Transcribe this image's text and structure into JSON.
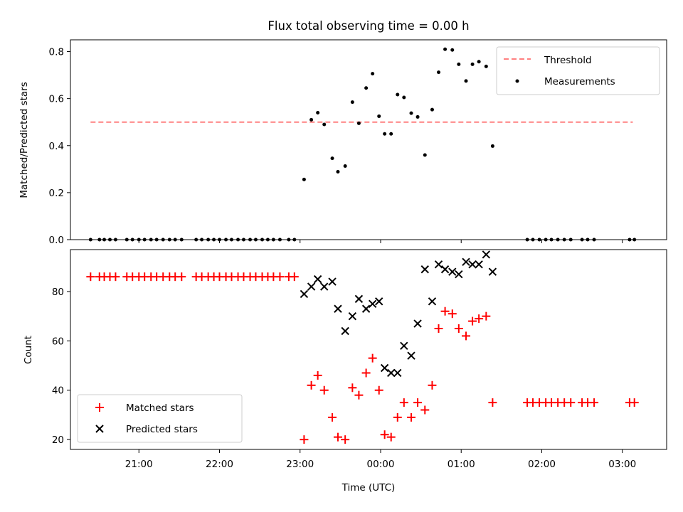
{
  "chart_data": {
    "title": "Flux total observing time = 0.00 h",
    "xlabel": "Time (UTC)",
    "x_ticks": [
      "21:00",
      "22:00",
      "23:00",
      "00:00",
      "01:00",
      "02:00",
      "03:00"
    ],
    "x_unit_note": "x values are hours after 20:00 UTC on the first night",
    "panels": [
      {
        "type": "scatter",
        "ylabel": "Matched/Predicted stars",
        "ylim": [
          0,
          0.85
        ],
        "yticks": [
          "0.0",
          "0.2",
          "0.4",
          "0.6",
          "0.8"
        ],
        "legend_position": "upper right",
        "series": [
          {
            "name": "Threshold",
            "style": "dashed-line",
            "color": "#ff8080",
            "points": [
              [
                0.4,
                0.5
              ],
              [
                7.13,
                0.5
              ]
            ]
          },
          {
            "name": "Measurements",
            "style": "dot",
            "color": "#000000",
            "points": [
              [
                0.4,
                0.0
              ],
              [
                0.51,
                0.0
              ],
              [
                0.57,
                0.0
              ],
              [
                0.64,
                0.0
              ],
              [
                0.71,
                0.0
              ],
              [
                0.85,
                0.0
              ],
              [
                0.92,
                0.0
              ],
              [
                1.0,
                0.0
              ],
              [
                1.07,
                0.0
              ],
              [
                1.15,
                0.0
              ],
              [
                1.22,
                0.0
              ],
              [
                1.3,
                0.0
              ],
              [
                1.38,
                0.0
              ],
              [
                1.45,
                0.0
              ],
              [
                1.53,
                0.0
              ],
              [
                1.71,
                0.0
              ],
              [
                1.78,
                0.0
              ],
              [
                1.86,
                0.0
              ],
              [
                1.93,
                0.0
              ],
              [
                2.0,
                0.0
              ],
              [
                2.08,
                0.0
              ],
              [
                2.15,
                0.0
              ],
              [
                2.23,
                0.0
              ],
              [
                2.3,
                0.0
              ],
              [
                2.38,
                0.0
              ],
              [
                2.45,
                0.0
              ],
              [
                2.53,
                0.0
              ],
              [
                2.6,
                0.0
              ],
              [
                2.67,
                0.0
              ],
              [
                2.75,
                0.0
              ],
              [
                2.86,
                0.0
              ],
              [
                2.93,
                0.0
              ],
              [
                3.05,
                0.256
              ],
              [
                3.14,
                0.51
              ],
              [
                3.22,
                0.54
              ],
              [
                3.3,
                0.49
              ],
              [
                3.4,
                0.346
              ],
              [
                3.47,
                0.289
              ],
              [
                3.56,
                0.313
              ],
              [
                3.65,
                0.585
              ],
              [
                3.73,
                0.495
              ],
              [
                3.82,
                0.645
              ],
              [
                3.9,
                0.706
              ],
              [
                3.98,
                0.525
              ],
              [
                4.05,
                0.45
              ],
              [
                4.13,
                0.45
              ],
              [
                4.21,
                0.617
              ],
              [
                4.29,
                0.605
              ],
              [
                4.38,
                0.538
              ],
              [
                4.46,
                0.522
              ],
              [
                4.55,
                0.36
              ],
              [
                4.64,
                0.553
              ],
              [
                4.72,
                0.712
              ],
              [
                4.8,
                0.81
              ],
              [
                4.89,
                0.807
              ],
              [
                4.97,
                0.746
              ],
              [
                5.06,
                0.675
              ],
              [
                5.14,
                0.746
              ],
              [
                5.22,
                0.757
              ],
              [
                5.31,
                0.737
              ],
              [
                5.39,
                0.398
              ],
              [
                5.82,
                0.0
              ],
              [
                5.89,
                0.0
              ],
              [
                5.97,
                0.0
              ],
              [
                6.05,
                0.0
              ],
              [
                6.12,
                0.0
              ],
              [
                6.2,
                0.0
              ],
              [
                6.28,
                0.0
              ],
              [
                6.36,
                0.0
              ],
              [
                6.5,
                0.0
              ],
              [
                6.57,
                0.0
              ],
              [
                6.65,
                0.0
              ],
              [
                7.09,
                0.0
              ],
              [
                7.15,
                0.0
              ]
            ]
          }
        ]
      },
      {
        "type": "scatter",
        "ylabel": "Count",
        "ylim": [
          16,
          97
        ],
        "yticks": [
          "20",
          "40",
          "60",
          "80"
        ],
        "legend_position": "lower left",
        "series": [
          {
            "name": "Matched stars",
            "marker": "plus",
            "color": "#ff0000",
            "points": [
              [
                0.4,
                86
              ],
              [
                0.51,
                86
              ],
              [
                0.57,
                86
              ],
              [
                0.64,
                86
              ],
              [
                0.71,
                86
              ],
              [
                0.85,
                86
              ],
              [
                0.92,
                86
              ],
              [
                1.0,
                86
              ],
              [
                1.07,
                86
              ],
              [
                1.15,
                86
              ],
              [
                1.22,
                86
              ],
              [
                1.3,
                86
              ],
              [
                1.38,
                86
              ],
              [
                1.45,
                86
              ],
              [
                1.53,
                86
              ],
              [
                1.71,
                86
              ],
              [
                1.78,
                86
              ],
              [
                1.86,
                86
              ],
              [
                1.93,
                86
              ],
              [
                2.0,
                86
              ],
              [
                2.08,
                86
              ],
              [
                2.15,
                86
              ],
              [
                2.23,
                86
              ],
              [
                2.3,
                86
              ],
              [
                2.38,
                86
              ],
              [
                2.45,
                86
              ],
              [
                2.53,
                86
              ],
              [
                2.6,
                86
              ],
              [
                2.67,
                86
              ],
              [
                2.75,
                86
              ],
              [
                2.86,
                86
              ],
              [
                2.93,
                86
              ],
              [
                3.05,
                20
              ],
              [
                3.14,
                42
              ],
              [
                3.22,
                46
              ],
              [
                3.3,
                40
              ],
              [
                3.4,
                29
              ],
              [
                3.47,
                21
              ],
              [
                3.56,
                20
              ],
              [
                3.65,
                41
              ],
              [
                3.73,
                38
              ],
              [
                3.82,
                47
              ],
              [
                3.9,
                53
              ],
              [
                3.98,
                40
              ],
              [
                4.05,
                22
              ],
              [
                4.13,
                21
              ],
              [
                4.21,
                29
              ],
              [
                4.29,
                35
              ],
              [
                4.38,
                29
              ],
              [
                4.46,
                35
              ],
              [
                4.55,
                32
              ],
              [
                4.64,
                42
              ],
              [
                4.72,
                65
              ],
              [
                4.8,
                72
              ],
              [
                4.89,
                71
              ],
              [
                4.97,
                65
              ],
              [
                5.06,
                62
              ],
              [
                5.14,
                68
              ],
              [
                5.22,
                69
              ],
              [
                5.31,
                70
              ],
              [
                5.39,
                35
              ],
              [
                5.82,
                35
              ],
              [
                5.89,
                35
              ],
              [
                5.97,
                35
              ],
              [
                6.05,
                35
              ],
              [
                6.12,
                35
              ],
              [
                6.2,
                35
              ],
              [
                6.28,
                35
              ],
              [
                6.36,
                35
              ],
              [
                6.5,
                35
              ],
              [
                6.57,
                35
              ],
              [
                6.65,
                35
              ],
              [
                7.09,
                35
              ],
              [
                7.15,
                35
              ]
            ]
          },
          {
            "name": "Predicted stars",
            "marker": "x",
            "color": "#000000",
            "points": [
              [
                3.05,
                79
              ],
              [
                3.14,
                82
              ],
              [
                3.22,
                85
              ],
              [
                3.3,
                82
              ],
              [
                3.4,
                84
              ],
              [
                3.47,
                73
              ],
              [
                3.56,
                64
              ],
              [
                3.65,
                70
              ],
              [
                3.73,
                77
              ],
              [
                3.82,
                73
              ],
              [
                3.9,
                75
              ],
              [
                3.98,
                76
              ],
              [
                4.05,
                49
              ],
              [
                4.13,
                47
              ],
              [
                4.21,
                47
              ],
              [
                4.29,
                58
              ],
              [
                4.38,
                54
              ],
              [
                4.46,
                67
              ],
              [
                4.55,
                89
              ],
              [
                4.64,
                76
              ],
              [
                4.72,
                91
              ],
              [
                4.8,
                89
              ],
              [
                4.89,
                88
              ],
              [
                4.97,
                87
              ],
              [
                5.06,
                92
              ],
              [
                5.14,
                91
              ],
              [
                5.22,
                91
              ],
              [
                5.31,
                95
              ],
              [
                5.39,
                88
              ]
            ]
          }
        ]
      }
    ]
  }
}
